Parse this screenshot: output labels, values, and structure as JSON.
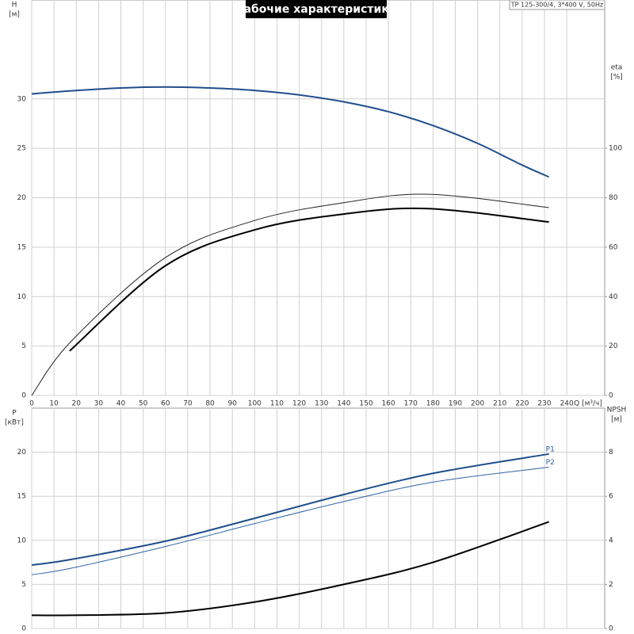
{
  "chart_data": [
    {
      "type": "line",
      "title": "Рабочие характеристики",
      "note": "TP 125-300/4, 3*400 V, 50Hz",
      "xlabel": "Q [м³/ч]",
      "ylabel": [
        "H",
        "[м]"
      ],
      "y2label": [
        "eta",
        "[%]"
      ],
      "xlim": [
        0,
        257
      ],
      "xticks": [
        0,
        10,
        20,
        30,
        40,
        50,
        60,
        70,
        80,
        90,
        100,
        110,
        120,
        130,
        140,
        150,
        160,
        170,
        180,
        190,
        200,
        210,
        220,
        230,
        240
      ],
      "ylim": [
        0,
        40
      ],
      "yticks": [
        0,
        5,
        10,
        15,
        20,
        25,
        30
      ],
      "y2lim": [
        0,
        160
      ],
      "y2ticks": [
        0,
        20,
        40,
        60,
        80,
        100
      ],
      "grid": true,
      "series": [
        {
          "color": "#1f4e8c",
          "line_width": 2,
          "x": [
            0,
            17,
            40,
            60,
            80,
            100,
            120,
            140,
            160,
            180,
            200,
            220,
            232
          ],
          "values": [
            30.5,
            30.8,
            31.1,
            31.2,
            31.1,
            30.85,
            30.4,
            29.7,
            28.7,
            27.3,
            25.5,
            23.3,
            22.1
          ]
        },
        {
          "color": "#222222",
          "line_width": 1,
          "axis": "y2",
          "x": [
            0,
            17.8,
            60,
            100,
            140,
            178,
            232
          ],
          "values": [
            0,
            22,
            55.8,
            70.8,
            78,
            81.4,
            76
          ]
        },
        {
          "color": "#000000",
          "line_width": 2,
          "axis": "y2",
          "x": [
            17,
            60,
            100,
            140,
            178,
            232
          ],
          "values": [
            18,
            52.5,
            67,
            73.4,
            75.6,
            70.2
          ]
        }
      ]
    },
    {
      "type": "line",
      "ylabel": [
        "P",
        "[кВт]"
      ],
      "y2label": [
        "NPSH",
        "[м]"
      ],
      "xlim": [
        0,
        257
      ],
      "ylim": [
        0,
        25
      ],
      "yticks": [
        0,
        5,
        10,
        15,
        20
      ],
      "y2lim": [
        0,
        10
      ],
      "y2ticks": [
        0,
        2,
        4,
        6,
        8
      ],
      "grid": true,
      "series": [
        {
          "name": "P1",
          "color": "#1f4e8c",
          "line_width": 2,
          "x": [
            0,
            17,
            60,
            100,
            140,
            180,
            232
          ],
          "values": [
            7.2,
            7.8,
            9.9,
            12.5,
            15.2,
            17.6,
            19.8
          ]
        },
        {
          "name": "P2",
          "color": "#2f62a8",
          "line_width": 1,
          "x": [
            0,
            17,
            60,
            100,
            140,
            180,
            232
          ],
          "values": [
            6.1,
            6.8,
            9.3,
            11.9,
            14.4,
            16.6,
            18.3
          ]
        },
        {
          "color": "#000000",
          "line_width": 2,
          "axis": "y2",
          "x": [
            0,
            17,
            60,
            100,
            140,
            180,
            232
          ],
          "values": [
            0.6,
            0.6,
            0.7,
            1.2,
            2.0,
            3.0,
            4.84
          ]
        }
      ]
    }
  ]
}
